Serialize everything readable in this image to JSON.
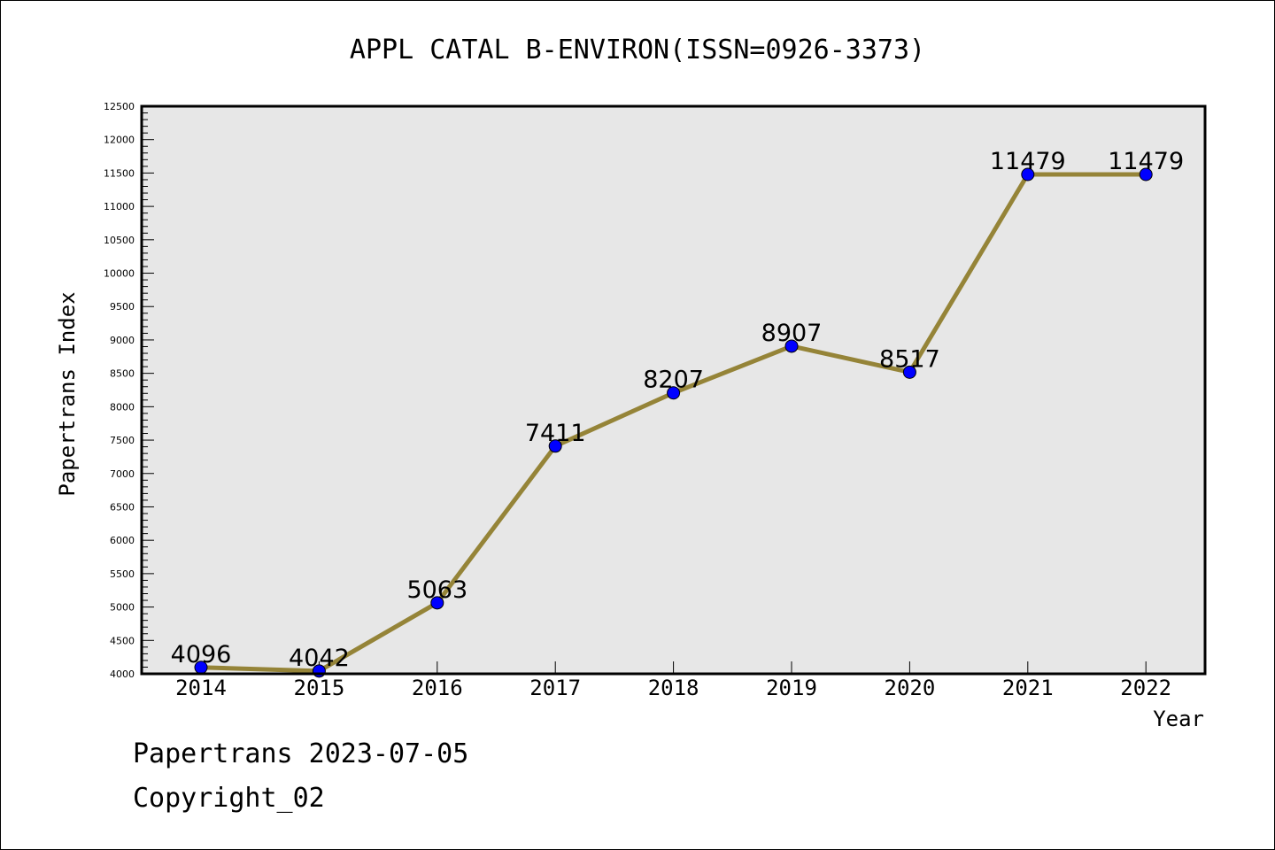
{
  "chart_data": {
    "type": "line",
    "title": "APPL CATAL B-ENVIRON(ISSN=0926-3373)",
    "xlabel": "Year",
    "ylabel": "Papertrans Index",
    "categories": [
      "2014",
      "2015",
      "2016",
      "2017",
      "2018",
      "2019",
      "2020",
      "2021",
      "2022"
    ],
    "series": [
      {
        "values": [
          4096,
          4042,
          5063,
          7411,
          8207,
          8907,
          8517,
          11479,
          11479
        ]
      }
    ],
    "data_labels": [
      "4096",
      "4042",
      "5063",
      "7411",
      "8207",
      "8907",
      "8517",
      "11479",
      "11479"
    ],
    "ylim": [
      4000,
      12500
    ],
    "y_ticks": [
      "4000",
      "4500",
      "5000",
      "5500",
      "6000",
      "6500",
      "7000",
      "7500",
      "8000",
      "8500",
      "9000",
      "9500",
      "10000",
      "10500",
      "11000",
      "11500",
      "12000",
      "12500"
    ],
    "grid": false,
    "legend": "none",
    "colors": {
      "line": "#958438",
      "marker": "#0000ff",
      "plot_background": "#e7e7e7"
    }
  },
  "footer": {
    "date_text": "Papertrans 2023-07-05",
    "copyright_text": "Copyright_02"
  }
}
